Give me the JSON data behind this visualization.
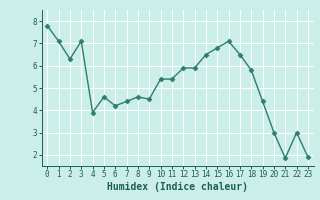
{
  "x": [
    0,
    1,
    2,
    3,
    4,
    5,
    6,
    7,
    8,
    9,
    10,
    11,
    12,
    13,
    14,
    15,
    16,
    17,
    18,
    19,
    20,
    21,
    22,
    23
  ],
  "y": [
    7.8,
    7.1,
    6.3,
    7.1,
    3.9,
    4.6,
    4.2,
    4.4,
    4.6,
    4.5,
    5.4,
    5.4,
    5.9,
    5.9,
    6.5,
    6.8,
    7.1,
    6.5,
    5.8,
    4.4,
    3.0,
    1.85,
    3.0,
    1.9
  ],
  "line_color": "#2e7d6e",
  "marker": "D",
  "markersize": 2.5,
  "linewidth": 1.0,
  "bg_color": "#cceee8",
  "grid_color": "#ffffff",
  "xlabel": "Humidex (Indice chaleur)",
  "xlabel_fontsize": 7,
  "tick_color": "#1a5f54",
  "tick_fontsize": 5.5,
  "ylim": [
    1.5,
    8.5
  ],
  "xlim": [
    -0.5,
    23.5
  ],
  "yticks": [
    2,
    3,
    4,
    5,
    6,
    7,
    8
  ],
  "xticks": [
    0,
    1,
    2,
    3,
    4,
    5,
    6,
    7,
    8,
    9,
    10,
    11,
    12,
    13,
    14,
    15,
    16,
    17,
    18,
    19,
    20,
    21,
    22,
    23
  ]
}
